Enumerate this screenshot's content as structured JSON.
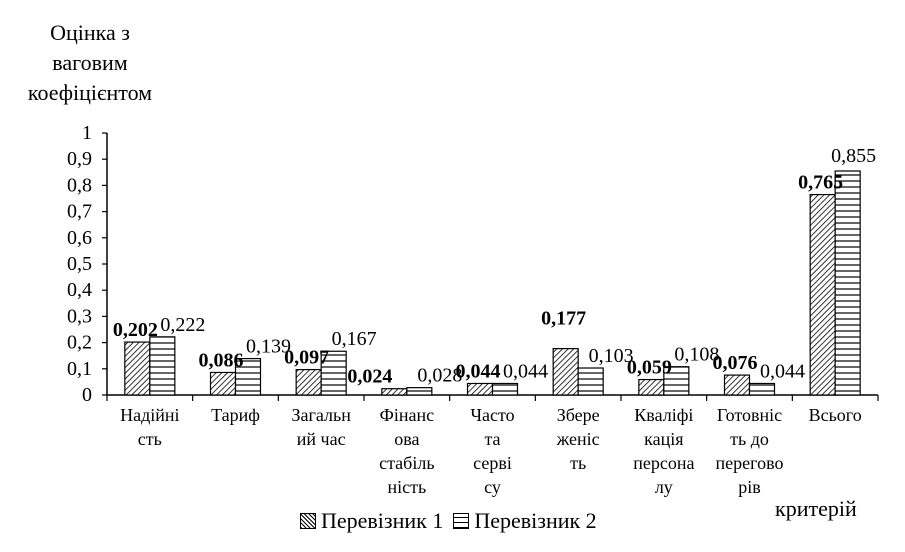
{
  "chart_data": {
    "type": "bar",
    "ylabel": "Оцінка з ваговим коефіцієнтом",
    "xlabel": "критерій",
    "ylim": [
      0,
      1
    ],
    "yticks": [
      "0",
      "0,1",
      "0,2",
      "0,3",
      "0,4",
      "0,5",
      "0,6",
      "0,7",
      "0,8",
      "0,9",
      "1"
    ],
    "categories": [
      [
        "Надійні",
        "сть"
      ],
      [
        "Тариф"
      ],
      [
        "Загальн",
        "ий час"
      ],
      [
        "Фінанс",
        "ова",
        "стабіль",
        "ність"
      ],
      [
        "Часто",
        "та",
        "серві",
        "су"
      ],
      [
        "Збере",
        "женіс",
        "ть"
      ],
      [
        "Кваліфі",
        "кація",
        "персона",
        "лу"
      ],
      [
        "Готовніс",
        "ть до",
        "перегово",
        "рів"
      ],
      [
        "Всього"
      ]
    ],
    "series": [
      {
        "name": "Перевізник 1",
        "pattern": "diagonal",
        "values": [
          0.202,
          0.086,
          0.097,
          0.024,
          0.044,
          0.177,
          0.059,
          0.076,
          0.765
        ],
        "labels": [
          "0,202",
          "0,086",
          "0,097",
          "0,024",
          "0,044",
          "0,177",
          "0,059",
          "0,076",
          "0,765"
        ]
      },
      {
        "name": "Перевізник 2",
        "pattern": "horizontal",
        "values": [
          0.222,
          0.139,
          0.167,
          0.028,
          0.044,
          0.103,
          0.108,
          0.044,
          0.855
        ],
        "labels": [
          "0,222",
          "0,139",
          "0,167",
          "0,028",
          "0,044",
          "0,103",
          "0,108",
          "0,044",
          "0,855"
        ]
      }
    ],
    "legend_position": "bottom",
    "grid": false
  }
}
